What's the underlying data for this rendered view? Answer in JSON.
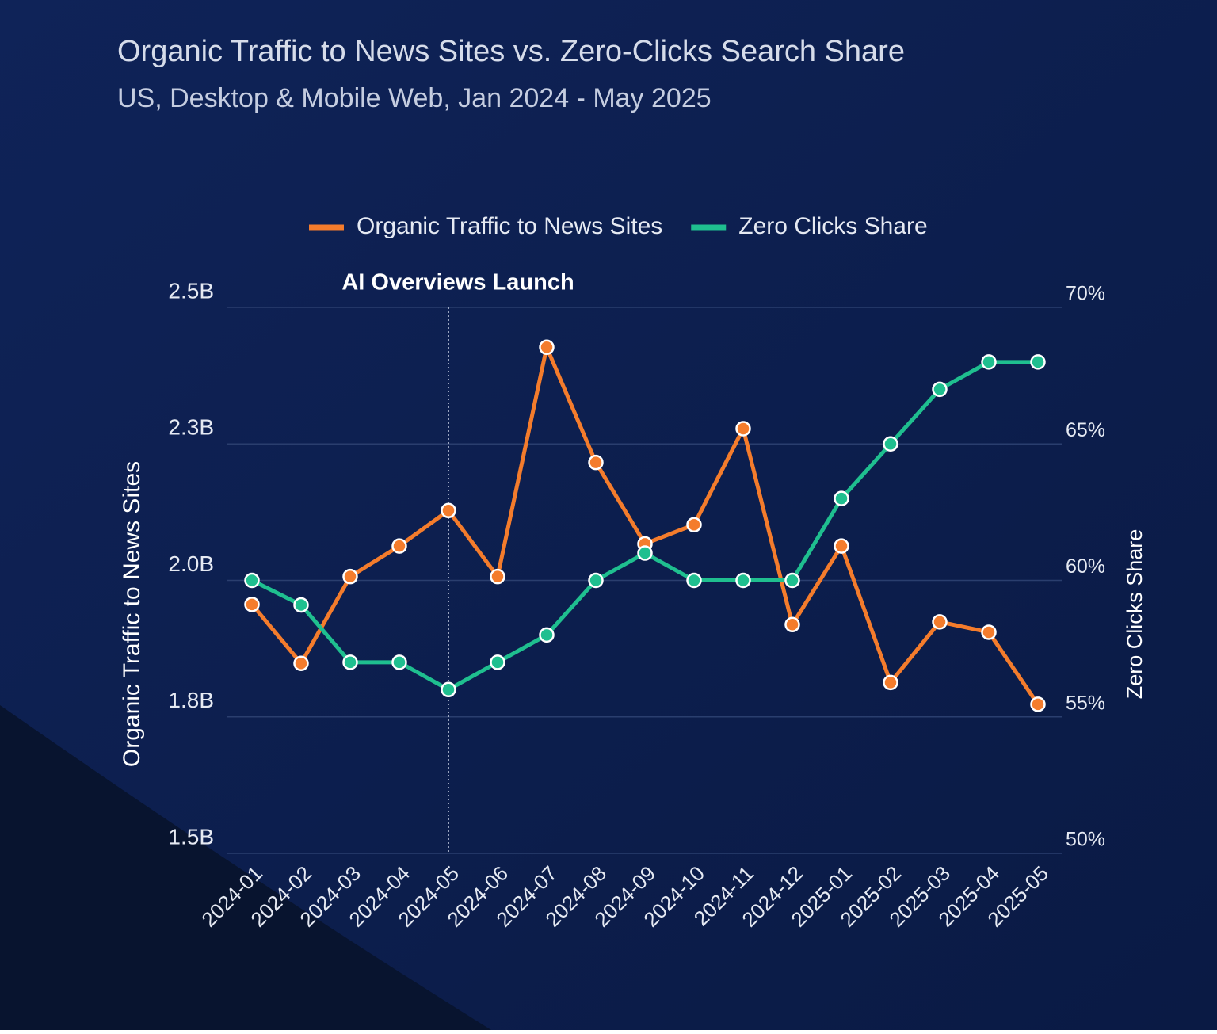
{
  "chart_data": {
    "type": "line",
    "title": "Organic Traffic to News Sites vs. Zero-Clicks Search Share",
    "subtitle": "US, Desktop & Mobile Web, Jan 2024 - May 2025",
    "y_label": "Organic Traffic to News Sites",
    "y2_label": "Zero Clicks Share",
    "x": [
      "2024-01",
      "2024-02",
      "2024-03",
      "2024-04",
      "2024-05",
      "2024-06",
      "2024-07",
      "2024-08",
      "2024-09",
      "2024-10",
      "2024-11",
      "2024-12",
      "2025-01",
      "2025-02",
      "2025-03",
      "2025-04",
      "2025-05"
    ],
    "series": [
      {
        "name": "Organic Traffic to News Sites",
        "color": "#f47c2c",
        "axis": "y",
        "values": [
          1.956,
          1.848,
          2.007,
          2.063,
          2.128,
          2.007,
          2.427,
          2.216,
          2.067,
          2.102,
          2.278,
          1.919,
          2.063,
          1.813,
          1.924,
          1.905,
          1.773
        ]
      },
      {
        "name": "Zero Clicks Share",
        "color": "#1fbf8f",
        "axis": "y2",
        "values": [
          60,
          59.1,
          57,
          57,
          56,
          57,
          58,
          60,
          61,
          60,
          60,
          60,
          63,
          65,
          67,
          68,
          68
        ]
      }
    ],
    "ylim": [
      1.5,
      2.5
    ],
    "yticks": [
      {
        "value": 1.5,
        "label": "1.5B"
      },
      {
        "value": 1.75,
        "label": "1.8B"
      },
      {
        "value": 2.0,
        "label": "2.0B"
      },
      {
        "value": 2.25,
        "label": "2.3B"
      },
      {
        "value": 2.5,
        "label": "2.5B"
      }
    ],
    "y2lim": [
      50,
      70
    ],
    "y2ticks": [
      {
        "value": 50,
        "label": "50%"
      },
      {
        "value": 55,
        "label": "55%"
      },
      {
        "value": 60,
        "label": "60%"
      },
      {
        "value": 65,
        "label": "65%"
      },
      {
        "value": 70,
        "label": "70%"
      }
    ],
    "grid": true,
    "annotation": {
      "text": "AI Overviews Launch",
      "x": "2024-05"
    }
  }
}
